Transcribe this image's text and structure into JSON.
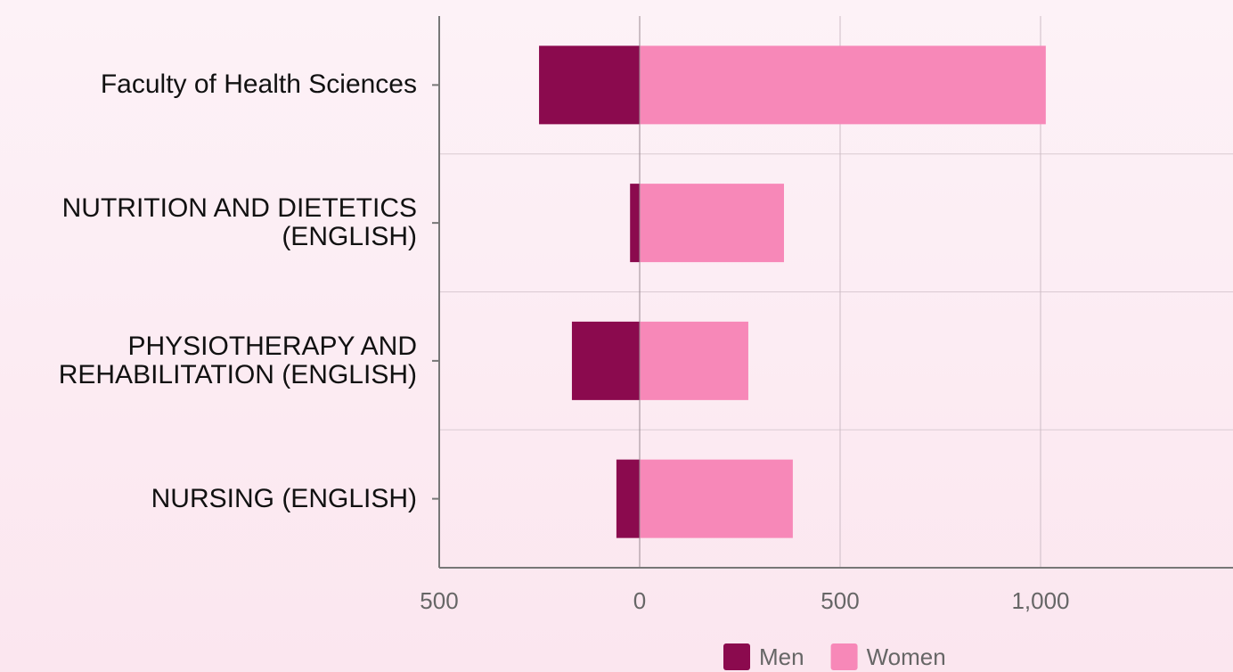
{
  "chart_data": {
    "type": "diverging-bar",
    "categories": [
      "Faculty of Health Sciences",
      "NUTRITION AND DIETETICS (ENGLISH)",
      "PHYSIOTHERAPY AND REHABILITATION (ENGLISH)",
      "NURSING (ENGLISH)"
    ],
    "series": [
      {
        "name": "Men",
        "color": "#8b0a4e",
        "values": [
          -251,
          -24,
          -169,
          -58
        ]
      },
      {
        "name": "Women",
        "color": "#f788b8",
        "values": [
          1013,
          360,
          271,
          382
        ]
      }
    ],
    "xlim": [
      -500,
      1480
    ],
    "xticks": [
      {
        "value": -500,
        "label": "500"
      },
      0,
      500,
      {
        "value": 1000,
        "label": "1,000"
      }
    ],
    "grid": true,
    "legend": "bottom"
  }
}
